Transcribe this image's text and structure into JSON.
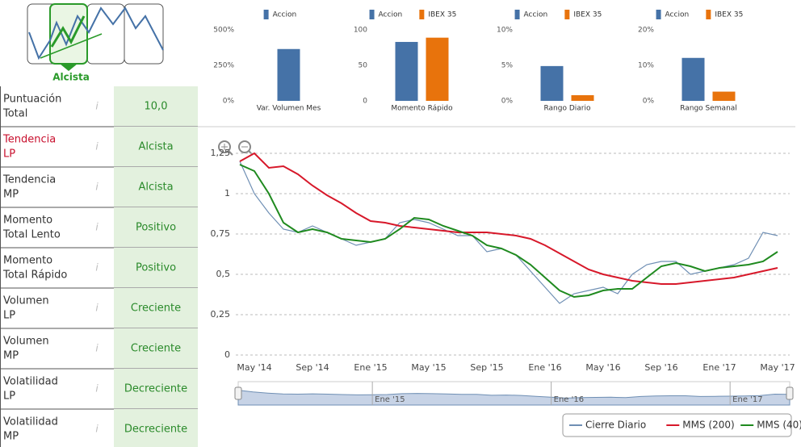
{
  "indicator": {
    "label": "Alcista"
  },
  "table": {
    "rows": [
      {
        "label": [
          "Puntuación",
          "Total"
        ],
        "value": "10,0"
      },
      {
        "label": [
          "Tendencia",
          "LP"
        ],
        "value": "Alcista",
        "highlight": true
      },
      {
        "label": [
          "Tendencia",
          "MP"
        ],
        "value": "Alcista"
      },
      {
        "label": [
          "Momento",
          "Total Lento"
        ],
        "value": "Positivo"
      },
      {
        "label": [
          "Momento",
          "Total Rápido"
        ],
        "value": "Positivo"
      },
      {
        "label": [
          "Volumen",
          "LP"
        ],
        "value": "Creciente"
      },
      {
        "label": [
          "Volumen",
          "MP"
        ],
        "value": "Creciente"
      },
      {
        "label": [
          "Volatilidad",
          "LP"
        ],
        "value": "Decreciente"
      },
      {
        "label": [
          "Volatilidad",
          "MP"
        ],
        "value": "Decreciente"
      }
    ]
  },
  "chart_data": [
    {
      "type": "bar",
      "categories": [
        "Var. Volumen Mes"
      ],
      "series": [
        {
          "name": "Accion",
          "color": "#4572a7",
          "values": [
            365
          ]
        }
      ],
      "ylim": [
        0,
        500
      ],
      "yticks": [
        {
          "value": 0,
          "label": "0%"
        },
        {
          "value": 250,
          "label": "250%"
        },
        {
          "value": 500,
          "label": "500%"
        }
      ]
    },
    {
      "type": "bar",
      "categories": [
        "Momento Rápido"
      ],
      "series": [
        {
          "name": "Accion",
          "color": "#4572a7",
          "values": [
            83
          ]
        },
        {
          "name": "IBEX 35",
          "color": "#e8730c",
          "values": [
            89
          ]
        }
      ],
      "ylim": [
        0,
        100
      ],
      "yticks": [
        0,
        50,
        100
      ]
    },
    {
      "type": "bar",
      "categories": [
        "Rango Diario"
      ],
      "series": [
        {
          "name": "Accion",
          "color": "#4572a7",
          "values": [
            4.9
          ]
        },
        {
          "name": "IBEX 35",
          "color": "#e8730c",
          "values": [
            0.8
          ]
        }
      ],
      "ylim": [
        0,
        10
      ],
      "yticks": [
        {
          "value": 0,
          "label": "0%"
        },
        {
          "value": 5,
          "label": "5%"
        },
        {
          "value": 10,
          "label": "10%"
        }
      ]
    },
    {
      "type": "bar",
      "categories": [
        "Rango Semanal"
      ],
      "series": [
        {
          "name": "Accion",
          "color": "#4572a7",
          "values": [
            12.1
          ]
        },
        {
          "name": "IBEX 35",
          "color": "#e8730c",
          "values": [
            2.6
          ]
        }
      ],
      "ylim": [
        0,
        20
      ],
      "yticks": [
        {
          "value": 0,
          "label": "0%"
        },
        {
          "value": 10,
          "label": "10%"
        },
        {
          "value": 20,
          "label": "20%"
        }
      ]
    },
    {
      "type": "line",
      "x": [
        "2014-04",
        "2014-05",
        "2014-06",
        "2014-07",
        "2014-08",
        "2014-09",
        "2014-10",
        "2014-11",
        "2014-12",
        "2015-01",
        "2015-02",
        "2015-03",
        "2015-04",
        "2015-05",
        "2015-06",
        "2015-07",
        "2015-08",
        "2015-09",
        "2015-10",
        "2015-11",
        "2015-12",
        "2016-01",
        "2016-02",
        "2016-03",
        "2016-04",
        "2016-05",
        "2016-06",
        "2016-07",
        "2016-08",
        "2016-09",
        "2016-10",
        "2016-11",
        "2016-12",
        "2017-01",
        "2017-02",
        "2017-03",
        "2017-04",
        "2017-05"
      ],
      "series": [
        {
          "name": "Cierre Diario",
          "color": "#6f8fb4",
          "values": [
            1.2,
            1.0,
            0.88,
            0.78,
            0.76,
            0.8,
            0.76,
            0.72,
            0.68,
            0.7,
            0.72,
            0.82,
            0.84,
            0.82,
            0.78,
            0.74,
            0.74,
            0.64,
            0.66,
            0.62,
            0.52,
            0.42,
            0.32,
            0.38,
            0.4,
            0.42,
            0.38,
            0.5,
            0.56,
            0.58,
            0.58,
            0.5,
            0.52,
            0.54,
            0.56,
            0.6,
            0.76,
            0.74
          ]
        },
        {
          "name": "MMS (200)",
          "color": "#d7182a",
          "values": [
            1.2,
            1.25,
            1.16,
            1.17,
            1.12,
            1.05,
            0.99,
            0.94,
            0.88,
            0.83,
            0.82,
            0.8,
            0.79,
            0.78,
            0.77,
            0.76,
            0.76,
            0.76,
            0.75,
            0.74,
            0.72,
            0.68,
            0.63,
            0.58,
            0.53,
            0.5,
            0.48,
            0.46,
            0.45,
            0.44,
            0.44,
            0.45,
            0.46,
            0.47,
            0.48,
            0.5,
            0.52,
            0.54
          ]
        },
        {
          "name": "MMS (40)",
          "color": "#1f8a1f",
          "values": [
            1.18,
            1.14,
            1.0,
            0.82,
            0.76,
            0.78,
            0.76,
            0.72,
            0.71,
            0.7,
            0.72,
            0.78,
            0.85,
            0.84,
            0.8,
            0.77,
            0.74,
            0.68,
            0.66,
            0.62,
            0.56,
            0.48,
            0.4,
            0.36,
            0.37,
            0.4,
            0.41,
            0.41,
            0.48,
            0.55,
            0.57,
            0.55,
            0.52,
            0.54,
            0.55,
            0.56,
            0.58,
            0.64
          ]
        }
      ],
      "ylim": [
        0,
        1.3
      ],
      "yticks": [
        0,
        {
          "value": 0.25,
          "label": "0,25"
        },
        {
          "value": 0.5,
          "label": "0,5"
        },
        {
          "value": 0.75,
          "label": "0,75"
        },
        1,
        {
          "value": 1.25,
          "label": "1,25"
        }
      ],
      "xticks": [
        {
          "value": "2014-05",
          "label": "May '14"
        },
        {
          "value": "2014-09",
          "label": "Sep '14"
        },
        {
          "value": "2015-01",
          "label": "Ene '15"
        },
        {
          "value": "2015-05",
          "label": "May '15"
        },
        {
          "value": "2015-09",
          "label": "Sep '15"
        },
        {
          "value": "2016-01",
          "label": "Ene '16"
        },
        {
          "value": "2016-05",
          "label": "May '16"
        },
        {
          "value": "2016-09",
          "label": "Sep '16"
        },
        {
          "value": "2017-01",
          "label": "Ene '17"
        },
        {
          "value": "2017-05",
          "label": "May '17"
        }
      ],
      "navigator_ticks": [
        {
          "value": "2015-01",
          "label": "Ene '15"
        },
        {
          "value": "2016-01",
          "label": "Ene '16"
        },
        {
          "value": "2017-01",
          "label": "Ene '17"
        }
      ],
      "grid": true,
      "legend": "bottom-right"
    }
  ]
}
